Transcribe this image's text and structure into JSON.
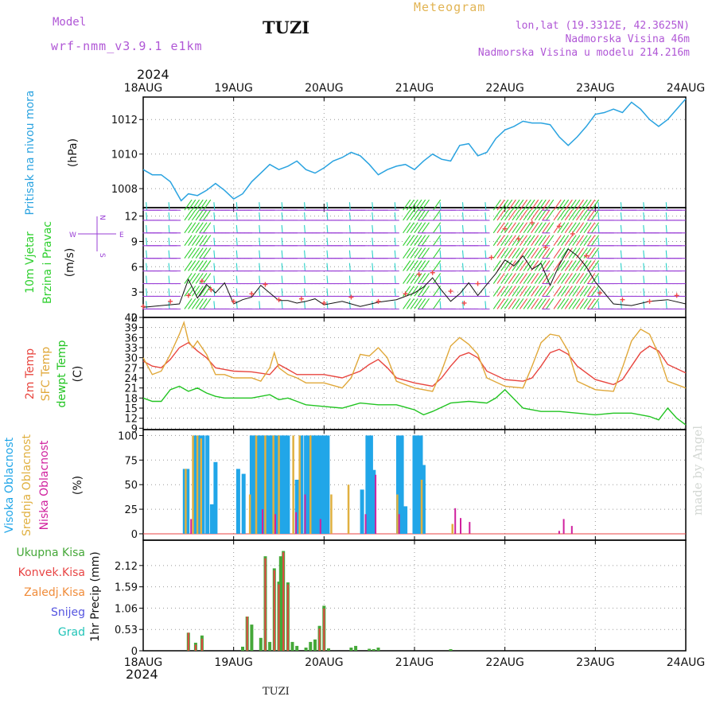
{
  "header": {
    "model_label": "Model",
    "model_name": "wrf-nmm_v3.9.1 e1km",
    "station": "TUZI",
    "product": "Meteogram",
    "lonlat": "lon,lat (19.3312E, 42.3625N)",
    "elevation": "Nadmorska Visina 46m",
    "model_elevation": "Nadmorska Visina u modelu 214.216m"
  },
  "time_axis": {
    "year": "2024",
    "ticks": [
      "18AUG",
      "19AUG",
      "20AUG",
      "21AUG",
      "22AUG",
      "23AUG",
      "24AUG"
    ]
  },
  "footer": {
    "station": "TUZI",
    "watermark": "made by Angel"
  },
  "colors": {
    "pressure": "#2aa3e0",
    "wind_calm": "#9a3fd6",
    "wind_mid": "#2ad0c8",
    "wind_strong": "#2fd02f",
    "wind_gust": "#f04848",
    "temp2m": "#e8463f",
    "sfc": "#e0a83a",
    "dewpt": "#22c422",
    "high_cloud": "#21a6e8",
    "mid_cloud": "#e0b040",
    "low_cloud": "#d0219e",
    "total": "#45a839",
    "conv": "#e84545",
    "frozen": "#f08c3a",
    "snow": "#5555e0",
    "graupel": "#21c4b8"
  },
  "chart_data": [
    {
      "type": "line",
      "ylabel_main": "Pritisak na nivou mora",
      "ylabel_unit": "(hPa)",
      "yticks": [
        "1008",
        "1010",
        "1012"
      ],
      "ylim": [
        1006.9,
        1013.3
      ],
      "x_unit": "days since 18AUG 00UTC",
      "series": [
        {
          "x": [
            0,
            0.1,
            0.2,
            0.3,
            0.42,
            0.5,
            0.6,
            0.7,
            0.8,
            0.9,
            1.0,
            1.1,
            1.2,
            1.3,
            1.4,
            1.5,
            1.6,
            1.7,
            1.8,
            1.9,
            2.0,
            2.1,
            2.2,
            2.3,
            2.4,
            2.5,
            2.6,
            2.7,
            2.8,
            2.9,
            3.0,
            3.1,
            3.2,
            3.3,
            3.4,
            3.5,
            3.6,
            3.7,
            3.8,
            3.9,
            4.0,
            4.1,
            4.2,
            4.3,
            4.4,
            4.5,
            4.6,
            4.7,
            4.8,
            4.9,
            5.0,
            5.1,
            5.2,
            5.3,
            5.4,
            5.5,
            5.6,
            5.7,
            5.8,
            5.9,
            6.0
          ],
          "values": [
            1009.1,
            1008.8,
            1008.8,
            1008.4,
            1007.3,
            1007.7,
            1007.6,
            1007.9,
            1008.3,
            1007.9,
            1007.4,
            1007.7,
            1008.4,
            1008.9,
            1009.4,
            1009.1,
            1009.3,
            1009.6,
            1009.1,
            1008.9,
            1009.2,
            1009.6,
            1009.8,
            1010.1,
            1009.9,
            1009.4,
            1008.8,
            1009.1,
            1009.3,
            1009.4,
            1009.1,
            1009.6,
            1010.0,
            1009.7,
            1009.6,
            1010.5,
            1010.6,
            1009.9,
            1010.1,
            1010.9,
            1011.4,
            1011.6,
            1011.9,
            1011.8,
            1011.8,
            1011.7,
            1011.0,
            1010.5,
            1011.0,
            1011.6,
            1012.3,
            1012.4,
            1012.6,
            1012.4,
            1013.0,
            1012.6,
            1012.0,
            1011.6,
            1012.0,
            1012.6,
            1013.2
          ]
        }
      ]
    },
    {
      "type": "scatter",
      "ylabel_main": "10m Vjetar",
      "ylabel_sub": "Brzina i Pravac",
      "ylabel_unit": "(m/s)",
      "compass": {
        "n": "N",
        "s": "S",
        "w": "W",
        "e": "E"
      },
      "yticks": [
        "0",
        "3",
        "6",
        "9",
        "12"
      ],
      "ylim": [
        0,
        13
      ],
      "x_unit": "days since 18AUG 00UTC",
      "series": [
        {
          "x": [
            0,
            0.2,
            0.4,
            0.5,
            0.6,
            0.7,
            0.8,
            0.9,
            1.0,
            1.1,
            1.2,
            1.3,
            1.4,
            1.5,
            1.6,
            1.7,
            1.8,
            1.9,
            2.0,
            2.2,
            2.4,
            2.6,
            2.8,
            3.0,
            3.1,
            3.2,
            3.3,
            3.4,
            3.5,
            3.6,
            3.7,
            3.8,
            3.9,
            4.0,
            4.1,
            4.2,
            4.3,
            4.4,
            4.5,
            4.6,
            4.7,
            4.8,
            4.9,
            5.0,
            5.2,
            5.4,
            5.6,
            5.8,
            6.0
          ],
          "values": [
            1.2,
            1.4,
            1.6,
            4.5,
            2.3,
            3.9,
            2.9,
            4.1,
            1.6,
            2.1,
            2.4,
            3.8,
            2.9,
            2.0,
            2.0,
            1.7,
            1.9,
            2.2,
            1.5,
            1.9,
            1.3,
            1.8,
            2.1,
            2.9,
            3.6,
            4.7,
            3.2,
            1.9,
            2.8,
            4.1,
            2.6,
            3.9,
            5.2,
            6.8,
            6.1,
            7.3,
            5.7,
            6.4,
            3.8,
            6.2,
            8.1,
            7.3,
            6.0,
            4.2,
            1.6,
            1.4,
            1.9,
            2.1,
            1.6
          ]
        },
        {
          "x": [
            0,
            0.3,
            0.5,
            0.65,
            0.75,
            1.0,
            1.2,
            1.35,
            1.5,
            1.75,
            2.0,
            2.3,
            2.6,
            2.9,
            3.05,
            3.2,
            3.4,
            3.55,
            3.7,
            3.85,
            4.0,
            4.15,
            4.3,
            4.45,
            4.6,
            4.75,
            4.9,
            5.05,
            5.3,
            5.6,
            5.9
          ],
          "values": [
            1.3,
            1.9,
            2.6,
            4.3,
            3.3,
            1.9,
            2.8,
            3.9,
            2.1,
            2.2,
            1.7,
            2.4,
            1.9,
            2.8,
            5.1,
            5.3,
            3.1,
            1.7,
            4.0,
            7.1,
            10.5,
            9.3,
            11.2,
            8.3,
            10.8,
            9.9,
            7.3,
            2.9,
            2.1,
            1.9,
            2.6
          ]
        }
      ]
    },
    {
      "type": "line",
      "ylabel_main": "2m Temp",
      "ylabel_sub": "SFC Temp",
      "ylabel_sub2": "dewpt Temp",
      "ylabel_unit": "(C)",
      "yticks": [
        "9",
        "12",
        "15",
        "18",
        "21",
        "24",
        "27",
        "30",
        "33",
        "36",
        "39",
        "42"
      ],
      "ylim": [
        8.6,
        42
      ],
      "x_unit": "days since 18AUG 00UTC",
      "series": [
        {
          "name": "2m Temp",
          "x": [
            0,
            0.1,
            0.2,
            0.3,
            0.4,
            0.5,
            0.6,
            0.7,
            0.8,
            0.9,
            1.0,
            1.2,
            1.4,
            1.5,
            1.6,
            1.7,
            1.8,
            2.0,
            2.2,
            2.4,
            2.5,
            2.6,
            2.7,
            2.8,
            3.0,
            3.2,
            3.3,
            3.4,
            3.5,
            3.6,
            3.7,
            3.8,
            4.0,
            4.2,
            4.3,
            4.4,
            4.5,
            4.6,
            4.7,
            4.8,
            5.0,
            5.2,
            5.3,
            5.4,
            5.5,
            5.6,
            5.7,
            5.8,
            6.0
          ],
          "values": [
            29,
            27.5,
            27,
            29.5,
            33,
            34.5,
            32,
            30,
            27,
            26.5,
            26,
            25.8,
            25,
            28,
            26.5,
            25,
            25,
            25,
            24,
            26,
            28,
            29.5,
            27,
            24,
            22.5,
            21.5,
            24,
            27.5,
            30.5,
            31.5,
            30,
            26,
            23.5,
            23,
            24,
            27.5,
            31.5,
            32.5,
            31,
            27.5,
            23.5,
            22,
            23.5,
            27.5,
            31.5,
            33.5,
            32,
            28,
            25.5
          ]
        },
        {
          "name": "SFC Temp",
          "x": [
            0,
            0.1,
            0.2,
            0.3,
            0.4,
            0.45,
            0.5,
            0.55,
            0.6,
            0.7,
            0.8,
            0.9,
            1.0,
            1.2,
            1.3,
            1.4,
            1.45,
            1.5,
            1.6,
            1.7,
            1.8,
            2.0,
            2.2,
            2.3,
            2.4,
            2.5,
            2.6,
            2.7,
            2.8,
            3.0,
            3.2,
            3.3,
            3.4,
            3.5,
            3.6,
            3.7,
            3.8,
            4.0,
            4.2,
            4.3,
            4.4,
            4.5,
            4.6,
            4.7,
            4.8,
            5.0,
            5.2,
            5.3,
            5.4,
            5.5,
            5.6,
            5.7,
            5.8,
            6.0
          ],
          "values": [
            30,
            25,
            26,
            31,
            37,
            40.5,
            35,
            33,
            35,
            31,
            25,
            25,
            24,
            24,
            23,
            27,
            31.5,
            27,
            25,
            24,
            22.5,
            22.5,
            21,
            24,
            31,
            30.5,
            33,
            30,
            23,
            21,
            20,
            26,
            33.5,
            36,
            34,
            31,
            24,
            21.5,
            21,
            27.5,
            34.5,
            37,
            36.5,
            32,
            23,
            20.5,
            20,
            27,
            35,
            38.5,
            37,
            31,
            23,
            21
          ]
        },
        {
          "name": "dewpt Temp",
          "x": [
            0,
            0.1,
            0.2,
            0.3,
            0.4,
            0.5,
            0.6,
            0.7,
            0.8,
            0.9,
            1.0,
            1.2,
            1.4,
            1.5,
            1.6,
            1.7,
            1.8,
            2.0,
            2.2,
            2.4,
            2.6,
            2.8,
            3.0,
            3.1,
            3.2,
            3.4,
            3.6,
            3.8,
            3.9,
            4.0,
            4.2,
            4.4,
            4.6,
            4.8,
            5.0,
            5.2,
            5.4,
            5.6,
            5.7,
            5.8,
            5.9,
            6.0
          ],
          "values": [
            18,
            17,
            17,
            20.5,
            21.5,
            20,
            21,
            19.5,
            18.5,
            18,
            18,
            18,
            19,
            17.5,
            18,
            17,
            16,
            15.5,
            15,
            16.5,
            16,
            16,
            14.5,
            13,
            14,
            16.5,
            17,
            16.5,
            18,
            20.5,
            15,
            14,
            14,
            13.5,
            13,
            13.5,
            13.5,
            12.5,
            11.5,
            15,
            12,
            10
          ]
        }
      ]
    },
    {
      "type": "bar",
      "ylabel_main": "Visoka Oblacnost",
      "ylabel_sub": "Srednja Oblacnost",
      "ylabel_sub2": "Niska Oblacnost",
      "ylabel_unit": "(%)",
      "yticks": [
        "0",
        "25",
        "50",
        "75",
        "100"
      ],
      "ylim": [
        -6.5,
        106
      ],
      "x_unit": "days since 18AUG 00UTC",
      "series": [
        {
          "name": "Visoka Oblacnost",
          "x": [
            0.46,
            0.49,
            0.57,
            0.62,
            0.66,
            0.71,
            0.76,
            0.8,
            1.05,
            1.11,
            1.2,
            1.23,
            1.27,
            1.3,
            1.33,
            1.36,
            1.39,
            1.42,
            1.45,
            1.48,
            1.51,
            1.54,
            1.57,
            1.6,
            1.7,
            1.75,
            1.8,
            1.83,
            1.86,
            1.89,
            1.92,
            1.95,
            1.98,
            2.01,
            2.04,
            2.42,
            2.48,
            2.52,
            2.55,
            2.82,
            2.86,
            2.9,
            3.0,
            3.03,
            3.07,
            3.1
          ],
          "values": [
            66,
            66,
            100,
            100,
            100,
            100,
            30,
            73,
            66,
            61,
            100,
            100,
            100,
            100,
            100,
            100,
            100,
            100,
            100,
            100,
            100,
            100,
            100,
            100,
            55,
            100,
            100,
            100,
            100,
            100,
            100,
            100,
            100,
            100,
            100,
            45,
            100,
            100,
            65,
            100,
            100,
            28,
            100,
            100,
            100,
            70
          ]
        },
        {
          "name": "Srednja Oblacnost",
          "x": [
            0.47,
            0.55,
            0.6,
            0.64,
            1.18,
            1.25,
            1.35,
            1.44,
            1.5,
            1.66,
            1.73,
            1.85,
            2.08,
            2.27,
            2.81,
            3.08,
            3.42
          ],
          "values": [
            66,
            100,
            100,
            97,
            40,
            100,
            100,
            100,
            100,
            100,
            100,
            100,
            40,
            50,
            40,
            55,
            10
          ]
        },
        {
          "name": "Niska Oblacnost",
          "x": [
            0.53,
            1.32,
            1.46,
            1.69,
            1.79,
            1.96,
            2.46,
            2.57,
            2.83,
            3.45,
            3.51,
            3.61,
            4.6,
            4.65,
            4.74
          ],
          "values": [
            15,
            25,
            20,
            22,
            40,
            15,
            20,
            60,
            20,
            26,
            16,
            12,
            3,
            15,
            8
          ]
        }
      ]
    },
    {
      "type": "bar",
      "ylabel_main": "1hr Precip",
      "ylabel_unit": "(mm)",
      "legend": [
        "Ukupna Kisa",
        "Konvek.Kisa",
        "Zaledj.Kisa",
        "Snijeg",
        "Grad"
      ],
      "yticks": [
        "0",
        "0.53",
        "1.06",
        "1.59",
        "2.12"
      ],
      "ylim": [
        0,
        2.75
      ],
      "x_unit": "days since 18AUG 00UTC",
      "series": [
        {
          "name": "Ukupna Kisa",
          "x": [
            0.5,
            0.58,
            0.65,
            1.1,
            1.15,
            1.2,
            1.3,
            1.35,
            1.4,
            1.45,
            1.5,
            1.52,
            1.55,
            1.6,
            1.65,
            1.7,
            1.8,
            1.85,
            1.9,
            1.95,
            2.0,
            2.05,
            2.3,
            2.35,
            2.5,
            2.55,
            2.6,
            3.4
          ],
          "values": [
            0.45,
            0.2,
            0.38,
            0.1,
            0.85,
            0.65,
            0.32,
            2.35,
            0.22,
            2.05,
            1.72,
            2.35,
            2.48,
            1.7,
            0.22,
            0.12,
            0.08,
            0.22,
            0.28,
            0.62,
            1.12,
            0.06,
            0.08,
            0.12,
            0.05,
            0.04,
            0.08,
            0.04
          ]
        },
        {
          "name": "Konvek.Kisa",
          "x": [
            0.5,
            0.58,
            0.65,
            1.15,
            1.35,
            1.45,
            1.5,
            1.55,
            1.6,
            1.95,
            2.0
          ],
          "values": [
            0.45,
            0.15,
            0.3,
            0.85,
            2.3,
            2.0,
            1.65,
            2.45,
            1.65,
            0.55,
            1.05
          ]
        }
      ]
    }
  ]
}
